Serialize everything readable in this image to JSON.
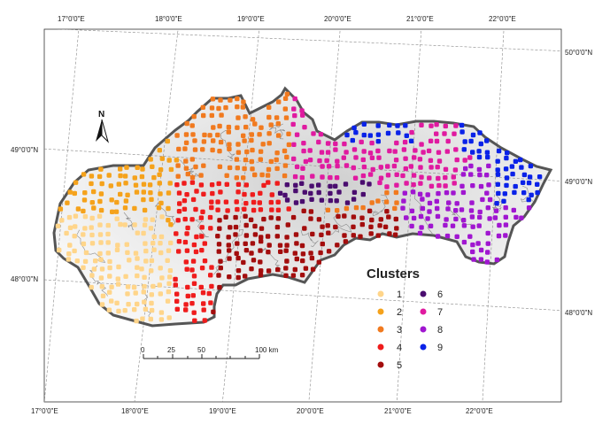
{
  "map": {
    "north_label": "N",
    "lon_labels": [
      "17°0'0\"E",
      "18°0'0\"E",
      "19°0'0\"E",
      "20°0'0\"E",
      "21°0'0\"E",
      "22°0'0\"E"
    ],
    "lat_labels": [
      "50°0'0\"N",
      "49°0'0\"N",
      "48°0'0\"N"
    ],
    "scale": {
      "ticks": [
        "0",
        "25",
        "50",
        "100 km"
      ]
    },
    "legend": {
      "title": "Clusters",
      "items": [
        {
          "id": "1",
          "color": "#ffd58a"
        },
        {
          "id": "2",
          "color": "#f5a21b"
        },
        {
          "id": "3",
          "color": "#f17a1f"
        },
        {
          "id": "4",
          "color": "#ef1c1c"
        },
        {
          "id": "5",
          "color": "#a30d0d"
        },
        {
          "id": "6",
          "color": "#4a0d6f"
        },
        {
          "id": "7",
          "color": "#e01aa0"
        },
        {
          "id": "8",
          "color": "#a016d0"
        },
        {
          "id": "9",
          "color": "#0a22e8"
        }
      ]
    }
  }
}
